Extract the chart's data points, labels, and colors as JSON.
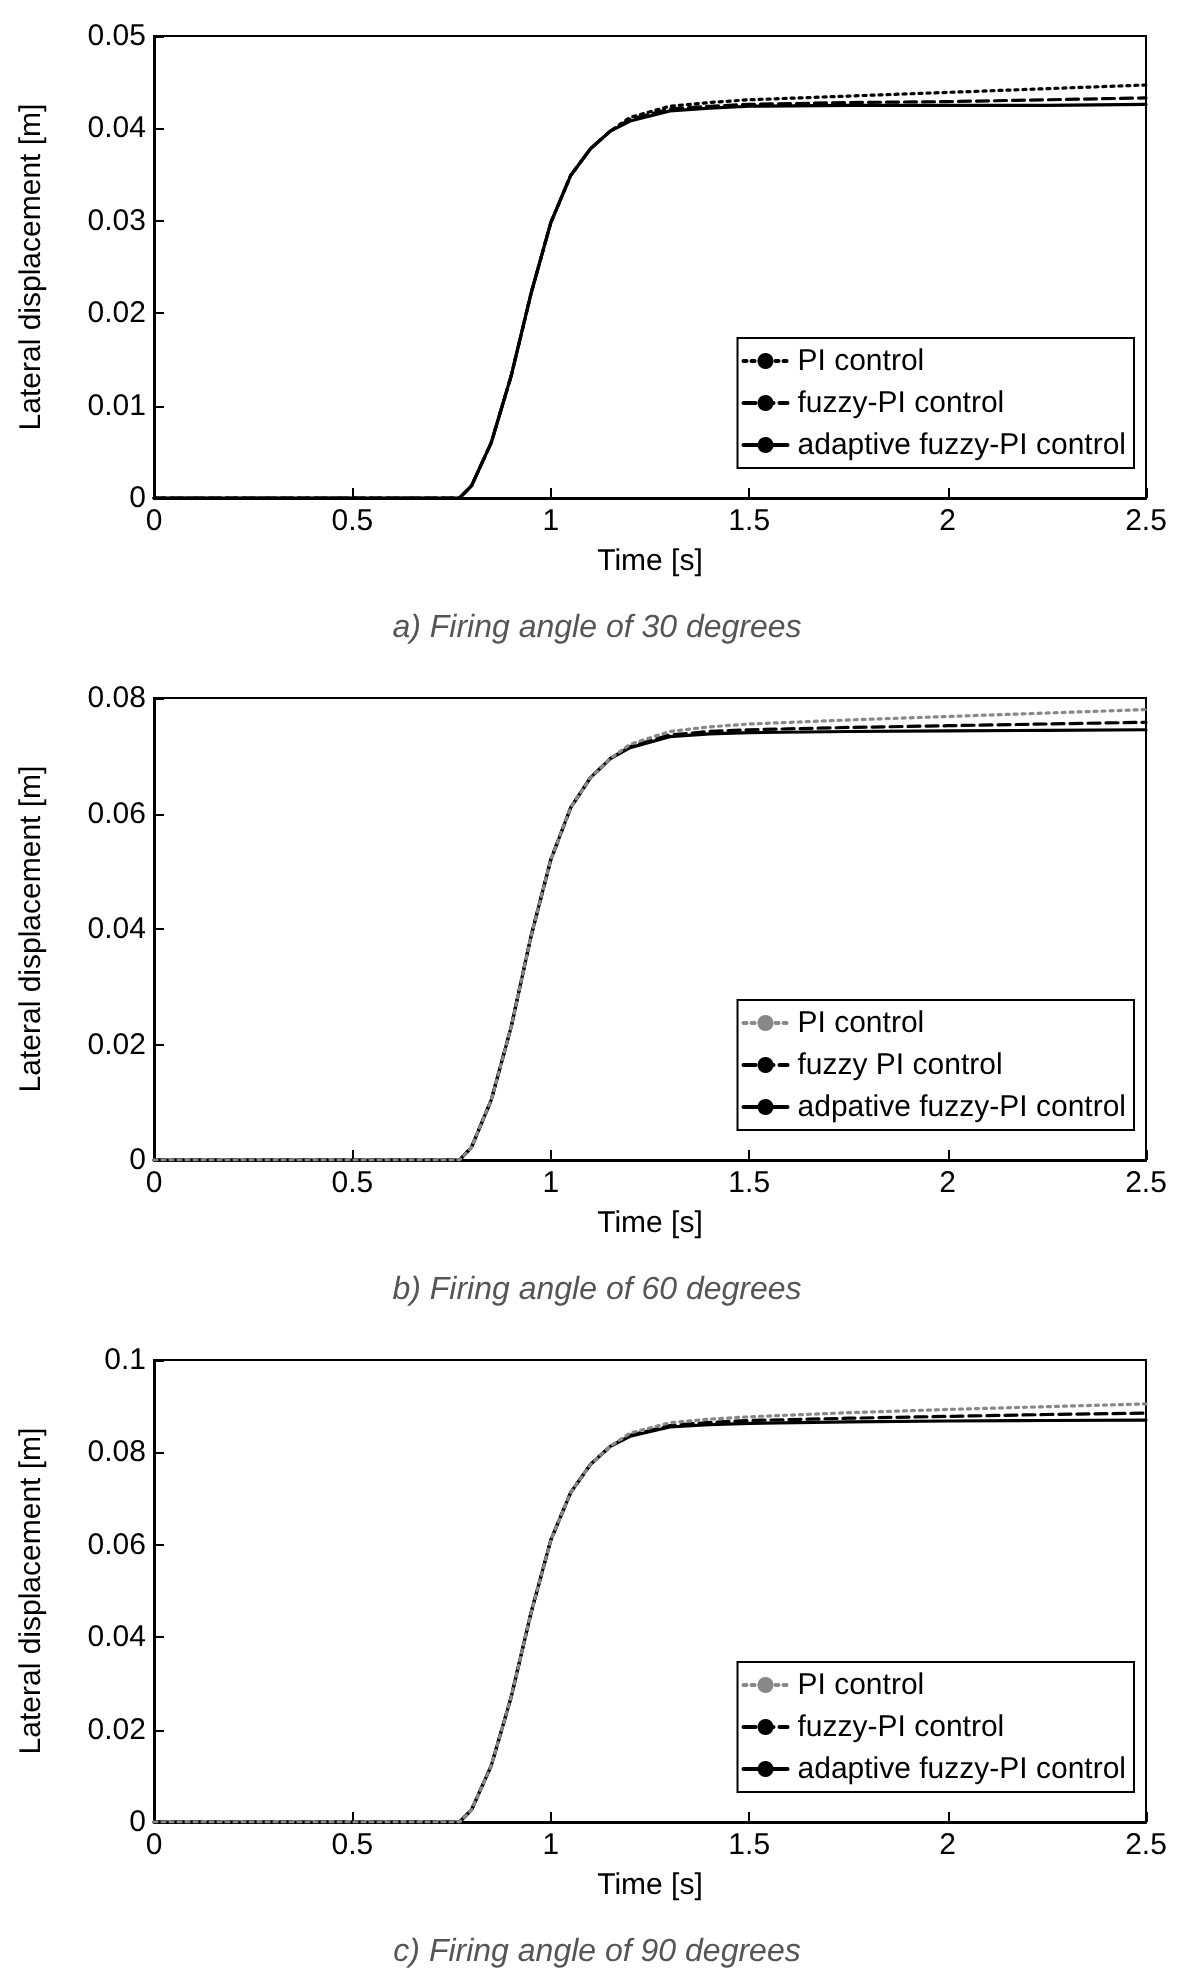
{
  "chart_data": [
    {
      "type": "line",
      "xlabel": "Time [s]",
      "ylabel": "Lateral displacement [m]",
      "annotations": [
        "a) Firing angle of 30 degrees"
      ],
      "xlim": [
        0,
        2.5
      ],
      "xticks": [
        0,
        0.5,
        1,
        1.5,
        2,
        2.5
      ],
      "ylim": [
        0,
        0.05
      ],
      "yticks": [
        0,
        0.01,
        0.02,
        0.03,
        0.04,
        0.05
      ],
      "grid": false,
      "legend": "bottom right",
      "marker": "none",
      "x": [
        0,
        0.77,
        0.8,
        0.85,
        0.9,
        0.95,
        1.0,
        1.05,
        1.1,
        1.15,
        1.2,
        1.3,
        1.4,
        1.5,
        1.75,
        2.0,
        2.25,
        2.5
      ],
      "series": [
        {
          "name": "PI control",
          "color": "#000000",
          "line_style": "dotted",
          "values": [
            0,
            0,
            0.0013,
            0.006,
            0.0132,
            0.0221,
            0.0298,
            0.0349,
            0.0378,
            0.0397,
            0.0412,
            0.0424,
            0.0428,
            0.0431,
            0.0435,
            0.0439,
            0.0443,
            0.0447
          ]
        },
        {
          "name": "fuzzy-PI control",
          "color": "#000000",
          "line_style": "dashed",
          "values": [
            0,
            0,
            0.0013,
            0.006,
            0.0132,
            0.0221,
            0.0298,
            0.0349,
            0.0378,
            0.0397,
            0.041,
            0.0421,
            0.0424,
            0.0426,
            0.0428,
            0.0429,
            0.0431,
            0.0433
          ]
        },
        {
          "name": "adaptive fuzzy-PI control",
          "color": "#000000",
          "line_style": "solid",
          "values": [
            0,
            0,
            0.0013,
            0.006,
            0.0132,
            0.0221,
            0.0298,
            0.0349,
            0.0378,
            0.0397,
            0.0408,
            0.0419,
            0.0422,
            0.0424,
            0.0425,
            0.0425,
            0.0425,
            0.0426
          ]
        }
      ]
    },
    {
      "type": "line",
      "xlabel": "Time [s]",
      "ylabel": "Lateral displacement [m]",
      "annotations": [
        "b) Firing angle of 60 degrees"
      ],
      "xlim": [
        0,
        2.5
      ],
      "xticks": [
        0,
        0.5,
        1,
        1.5,
        2,
        2.5
      ],
      "ylim": [
        0,
        0.08
      ],
      "yticks": [
        0,
        0.02,
        0.04,
        0.06,
        0.08
      ],
      "grid": false,
      "legend": "bottom right",
      "marker": "none",
      "x": [
        0,
        0.77,
        0.8,
        0.85,
        0.9,
        0.95,
        1.0,
        1.05,
        1.1,
        1.15,
        1.2,
        1.3,
        1.4,
        1.5,
        1.75,
        2.0,
        2.25,
        2.5
      ],
      "series": [
        {
          "name": "PI control",
          "color": "#888888",
          "line_style": "dotted",
          "values": [
            0,
            0,
            0.0022,
            0.0104,
            0.023,
            0.0387,
            0.052,
            0.061,
            0.0662,
            0.0695,
            0.072,
            0.0742,
            0.075,
            0.0755,
            0.0762,
            0.0768,
            0.0774,
            0.078
          ]
        },
        {
          "name": "fuzzy PI control",
          "color": "#000000",
          "line_style": "dashed",
          "values": [
            0,
            0,
            0.0022,
            0.0104,
            0.023,
            0.0387,
            0.052,
            0.061,
            0.0662,
            0.0695,
            0.0716,
            0.0736,
            0.0742,
            0.0745,
            0.0749,
            0.0752,
            0.0755,
            0.0758
          ]
        },
        {
          "name": "adpative fuzzy-PI control",
          "color": "#000000",
          "line_style": "solid",
          "values": [
            0,
            0,
            0.0022,
            0.0104,
            0.023,
            0.0387,
            0.052,
            0.061,
            0.0662,
            0.0695,
            0.0714,
            0.0733,
            0.0738,
            0.074,
            0.0742,
            0.0743,
            0.0744,
            0.0745
          ]
        }
      ]
    },
    {
      "type": "line",
      "xlabel": "Time [s]",
      "ylabel": "Lateral displacement [m]",
      "annotations": [
        "c) Firing angle of 90 degrees"
      ],
      "xlim": [
        0,
        2.5
      ],
      "xticks": [
        0,
        0.5,
        1,
        1.5,
        2,
        2.5
      ],
      "ylim": [
        0,
        0.1
      ],
      "yticks": [
        0,
        0.02,
        0.04,
        0.06,
        0.08,
        0.1
      ],
      "grid": false,
      "legend": "bottom right",
      "marker": "none",
      "x": [
        0,
        0.77,
        0.8,
        0.85,
        0.9,
        0.95,
        1.0,
        1.05,
        1.1,
        1.15,
        1.2,
        1.3,
        1.4,
        1.5,
        1.75,
        2.0,
        2.25,
        2.5
      ],
      "series": [
        {
          "name": "PI control",
          "color": "#888888",
          "line_style": "dotted",
          "values": [
            0,
            0,
            0.0026,
            0.0122,
            0.027,
            0.0452,
            0.061,
            0.0713,
            0.0774,
            0.0813,
            0.0842,
            0.0864,
            0.0872,
            0.0877,
            0.0886,
            0.0893,
            0.0899,
            0.0905
          ]
        },
        {
          "name": "fuzzy-PI control",
          "color": "#000000",
          "line_style": "dashed",
          "values": [
            0,
            0,
            0.0026,
            0.0122,
            0.027,
            0.0452,
            0.061,
            0.0713,
            0.0774,
            0.0813,
            0.0837,
            0.0858,
            0.0865,
            0.0869,
            0.0874,
            0.0878,
            0.0882,
            0.0885
          ]
        },
        {
          "name": "adaptive fuzzy-PI control",
          "color": "#000000",
          "line_style": "solid",
          "values": [
            0,
            0,
            0.0026,
            0.0122,
            0.027,
            0.0452,
            0.061,
            0.0713,
            0.0774,
            0.0813,
            0.0835,
            0.0855,
            0.086,
            0.0863,
            0.0866,
            0.0868,
            0.0869,
            0.087
          ]
        }
      ]
    }
  ]
}
